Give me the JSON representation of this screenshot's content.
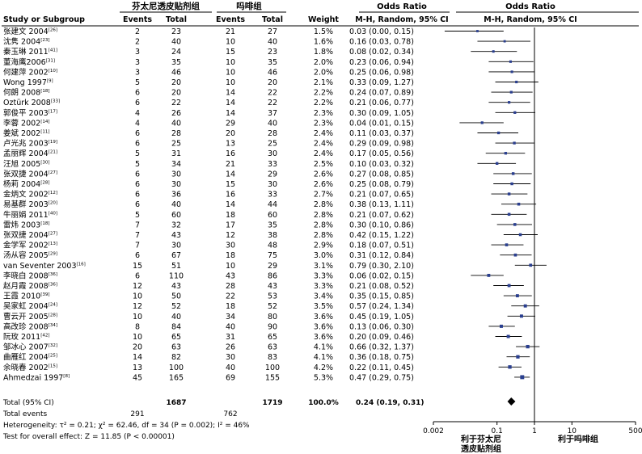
{
  "chart_data": {
    "type": "forest",
    "header": {
      "group1": "芬太尼透皮贴剂组",
      "group2": "吗啡组",
      "study_col": "Study or Subgroup",
      "events": "Events",
      "total": "Total",
      "weight": "Weight",
      "or_title": "Odds Ratio",
      "or_method": "M-H, Random, 95% CI"
    },
    "x_scale": "log",
    "xlim": [
      0.002,
      500
    ],
    "x_ticks": [
      "0.002",
      "0.1",
      "1",
      "10",
      "500"
    ],
    "x_tick_values": [
      0.002,
      0.1,
      1,
      10,
      500
    ],
    "null_value": 1,
    "favours_left": [
      "利于芬太尼",
      "透皮贴剂组"
    ],
    "favours_right": "利于吗啡组",
    "studies": [
      {
        "study": "张建文 2004",
        "ref": "[26]",
        "e1": 2,
        "n1": 23,
        "e2": 21,
        "n2": 27,
        "weight": "1.5%",
        "ci_text": "0.03 (0.00, 0.15)",
        "or": 0.03,
        "lo": 0.004,
        "hi": 0.15
      },
      {
        "study": "沈隽 2004",
        "ref": "[23]",
        "e1": 2,
        "n1": 40,
        "e2": 10,
        "n2": 40,
        "weight": "1.6%",
        "ci_text": "0.16 (0.03, 0.78)",
        "or": 0.16,
        "lo": 0.03,
        "hi": 0.78
      },
      {
        "study": "秦玉琳 2011",
        "ref": "[41]",
        "e1": 3,
        "n1": 24,
        "e2": 15,
        "n2": 23,
        "weight": "1.8%",
        "ci_text": "0.08 (0.02, 0.34)",
        "or": 0.08,
        "lo": 0.02,
        "hi": 0.34
      },
      {
        "study": "董海鹰2006",
        "ref": "[31]",
        "e1": 3,
        "n1": 35,
        "e2": 10,
        "n2": 35,
        "weight": "2.0%",
        "ci_text": "0.23 (0.06, 0.94)",
        "or": 0.23,
        "lo": 0.06,
        "hi": 0.94
      },
      {
        "study": "何建萍 2002",
        "ref": "[10]",
        "e1": 3,
        "n1": 46,
        "e2": 10,
        "n2": 46,
        "weight": "2.0%",
        "ci_text": "0.25 (0.06, 0.98)",
        "or": 0.25,
        "lo": 0.06,
        "hi": 0.98
      },
      {
        "study": "Wong 1997",
        "ref": "[9]",
        "e1": 5,
        "n1": 20,
        "e2": 10,
        "n2": 20,
        "weight": "2.1%",
        "ci_text": "0.33 (0.09, 1.27)",
        "or": 0.33,
        "lo": 0.09,
        "hi": 1.27
      },
      {
        "study": "何朗 2008",
        "ref": "[18]",
        "e1": 6,
        "n1": 20,
        "e2": 14,
        "n2": 22,
        "weight": "2.2%",
        "ci_text": "0.24 (0.07, 0.89)",
        "or": 0.24,
        "lo": 0.07,
        "hi": 0.89
      },
      {
        "study": "Oztürk 2008",
        "ref": "[33]",
        "e1": 6,
        "n1": 22,
        "e2": 14,
        "n2": 22,
        "weight": "2.2%",
        "ci_text": "0.21 (0.06, 0.77)",
        "or": 0.21,
        "lo": 0.06,
        "hi": 0.77
      },
      {
        "study": "郭俊平 2003",
        "ref": "[17]",
        "e1": 4,
        "n1": 26,
        "e2": 14,
        "n2": 37,
        "weight": "2.3%",
        "ci_text": "0.30 (0.09, 1.05)",
        "or": 0.3,
        "lo": 0.09,
        "hi": 1.05
      },
      {
        "study": "李蓉 2002",
        "ref": "[14]",
        "e1": 4,
        "n1": 40,
        "e2": 29,
        "n2": 40,
        "weight": "2.3%",
        "ci_text": "0.04 (0.01, 0.15)",
        "or": 0.04,
        "lo": 0.01,
        "hi": 0.15
      },
      {
        "study": "姜斌 2002",
        "ref": "[11]",
        "e1": 6,
        "n1": 28,
        "e2": 20,
        "n2": 28,
        "weight": "2.4%",
        "ci_text": "0.11 (0.03, 0.37)",
        "or": 0.11,
        "lo": 0.03,
        "hi": 0.37
      },
      {
        "study": "卢光兆 2003",
        "ref": "[19]",
        "e1": 6,
        "n1": 25,
        "e2": 13,
        "n2": 25,
        "weight": "2.4%",
        "ci_text": "0.29 (0.09, 0.98)",
        "or": 0.29,
        "lo": 0.09,
        "hi": 0.98
      },
      {
        "study": "孟丽辉 2004",
        "ref": "[21]",
        "e1": 5,
        "n1": 31,
        "e2": 16,
        "n2": 30,
        "weight": "2.4%",
        "ci_text": "0.17 (0.05, 0.56)",
        "or": 0.17,
        "lo": 0.05,
        "hi": 0.56
      },
      {
        "study": "汪旭 2005",
        "ref": "[30]",
        "e1": 5,
        "n1": 34,
        "e2": 21,
        "n2": 33,
        "weight": "2.5%",
        "ci_text": "0.10 (0.03, 0.32)",
        "or": 0.1,
        "lo": 0.03,
        "hi": 0.32
      },
      {
        "study": "张双捷 2004",
        "ref": "[27]",
        "e1": 6,
        "n1": 30,
        "e2": 14,
        "n2": 29,
        "weight": "2.6%",
        "ci_text": "0.27 (0.08, 0.85)",
        "or": 0.27,
        "lo": 0.08,
        "hi": 0.85
      },
      {
        "study": "杨莉 2004",
        "ref": "[28]",
        "e1": 6,
        "n1": 30,
        "e2": 15,
        "n2": 30,
        "weight": "2.6%",
        "ci_text": "0.25 (0.08, 0.79)",
        "or": 0.25,
        "lo": 0.08,
        "hi": 0.79
      },
      {
        "study": "金炳文 2002",
        "ref": "[12]",
        "e1": 6,
        "n1": 36,
        "e2": 16,
        "n2": 33,
        "weight": "2.7%",
        "ci_text": "0.21 (0.07, 0.65)",
        "or": 0.21,
        "lo": 0.07,
        "hi": 0.65
      },
      {
        "study": "易基群 2003",
        "ref": "[20]",
        "e1": 6,
        "n1": 40,
        "e2": 14,
        "n2": 44,
        "weight": "2.8%",
        "ci_text": "0.38 (0.13, 1.11)",
        "or": 0.38,
        "lo": 0.13,
        "hi": 1.11
      },
      {
        "study": "牛丽娟 2011",
        "ref": "[40]",
        "e1": 5,
        "n1": 60,
        "e2": 18,
        "n2": 60,
        "weight": "2.8%",
        "ci_text": "0.21 (0.07, 0.62)",
        "or": 0.21,
        "lo": 0.07,
        "hi": 0.62
      },
      {
        "study": "雷炜 2003",
        "ref": "[18]",
        "e1": 7,
        "n1": 32,
        "e2": 17,
        "n2": 35,
        "weight": "2.8%",
        "ci_text": "0.30 (0.10, 0.86)",
        "or": 0.3,
        "lo": 0.1,
        "hi": 0.86
      },
      {
        "study": "张双捷 2004",
        "ref": "[27]",
        "e1": 7,
        "n1": 43,
        "e2": 12,
        "n2": 38,
        "weight": "2.8%",
        "ci_text": "0.42 (0.15, 1.22)",
        "or": 0.42,
        "lo": 0.15,
        "hi": 1.22
      },
      {
        "study": "金学军 2002",
        "ref": "[13]",
        "e1": 7,
        "n1": 30,
        "e2": 30,
        "n2": 48,
        "weight": "2.9%",
        "ci_text": "0.18 (0.07, 0.51)",
        "or": 0.18,
        "lo": 0.07,
        "hi": 0.51
      },
      {
        "study": "汤从容 2005",
        "ref": "[29]",
        "e1": 6,
        "n1": 67,
        "e2": 18,
        "n2": 75,
        "weight": "3.0%",
        "ci_text": "0.31 (0.12, 0.84)",
        "or": 0.31,
        "lo": 0.12,
        "hi": 0.84
      },
      {
        "study": "van Seventer 2003",
        "ref": "[16]",
        "e1": 15,
        "n1": 51,
        "e2": 10,
        "n2": 29,
        "weight": "3.1%",
        "ci_text": "0.79 (0.30, 2.10)",
        "or": 0.79,
        "lo": 0.3,
        "hi": 2.1
      },
      {
        "study": "李晓白 2008",
        "ref": "[36]",
        "e1": 6,
        "n1": 110,
        "e2": 43,
        "n2": 86,
        "weight": "3.3%",
        "ci_text": "0.06 (0.02, 0.15)",
        "or": 0.06,
        "lo": 0.02,
        "hi": 0.15
      },
      {
        "study": "赵月霞 2008",
        "ref": "[36]",
        "e1": 12,
        "n1": 43,
        "e2": 28,
        "n2": 43,
        "weight": "3.3%",
        "ci_text": "0.21 (0.08, 0.52)",
        "or": 0.21,
        "lo": 0.08,
        "hi": 0.52
      },
      {
        "study": "王霞 2010",
        "ref": "[39]",
        "e1": 10,
        "n1": 50,
        "e2": 22,
        "n2": 53,
        "weight": "3.4%",
        "ci_text": "0.35 (0.15, 0.85)",
        "or": 0.35,
        "lo": 0.15,
        "hi": 0.85
      },
      {
        "study": "吴家虹 2004",
        "ref": "[24]",
        "e1": 12,
        "n1": 52,
        "e2": 18,
        "n2": 52,
        "weight": "3.5%",
        "ci_text": "0.57 (0.24, 1.34)",
        "or": 0.57,
        "lo": 0.24,
        "hi": 1.34
      },
      {
        "study": "曹云开 2005",
        "ref": "[28]",
        "e1": 10,
        "n1": 40,
        "e2": 34,
        "n2": 80,
        "weight": "3.6%",
        "ci_text": "0.45 (0.19, 1.05)",
        "or": 0.45,
        "lo": 0.19,
        "hi": 1.05
      },
      {
        "study": "高改珍 2008",
        "ref": "[34]",
        "e1": 8,
        "n1": 84,
        "e2": 40,
        "n2": 90,
        "weight": "3.6%",
        "ci_text": "0.13 (0.06, 0.30)",
        "or": 0.13,
        "lo": 0.06,
        "hi": 0.3
      },
      {
        "study": "阮玫 2011",
        "ref": "[42]",
        "e1": 10,
        "n1": 65,
        "e2": 31,
        "n2": 65,
        "weight": "3.6%",
        "ci_text": "0.20 (0.09, 0.46)",
        "or": 0.2,
        "lo": 0.09,
        "hi": 0.46
      },
      {
        "study": "邹冰心 2007",
        "ref": "[32]",
        "e1": 20,
        "n1": 63,
        "e2": 26,
        "n2": 63,
        "weight": "4.1%",
        "ci_text": "0.66 (0.32, 1.37)",
        "or": 0.66,
        "lo": 0.32,
        "hi": 1.37
      },
      {
        "study": "曲雁红 2004",
        "ref": "[25]",
        "e1": 14,
        "n1": 82,
        "e2": 30,
        "n2": 83,
        "weight": "4.1%",
        "ci_text": "0.36 (0.18, 0.75)",
        "or": 0.36,
        "lo": 0.18,
        "hi": 0.75
      },
      {
        "study": "余晓春 2002",
        "ref": "[15]",
        "e1": 13,
        "n1": 100,
        "e2": 40,
        "n2": 100,
        "weight": "4.2%",
        "ci_text": "0.22 (0.11, 0.45)",
        "or": 0.22,
        "lo": 0.11,
        "hi": 0.45
      },
      {
        "study": "Ahmedzai 1997",
        "ref": "[8]",
        "e1": 45,
        "n1": 165,
        "e2": 69,
        "n2": 155,
        "weight": "5.3%",
        "ci_text": "0.47 (0.29, 0.75)",
        "or": 0.47,
        "lo": 0.29,
        "hi": 0.75
      }
    ],
    "total": {
      "label": "Total (95% CI)",
      "n1": "1687",
      "n2": "1719",
      "weight": "100.0%",
      "ci_text": "0.24 (0.19, 0.31)",
      "or": 0.24,
      "lo": 0.19,
      "hi": 0.31
    },
    "total_events": {
      "label": "Total events",
      "e1": "291",
      "e2": "762"
    },
    "heterogeneity": "Heterogeneity: τ² = 0.21; χ² = 62.46, df = 34 (P = 0.002); I² = 46%",
    "overall_effect": "Test for overall effect: Z = 11.85 (P < 0.00001)"
  }
}
